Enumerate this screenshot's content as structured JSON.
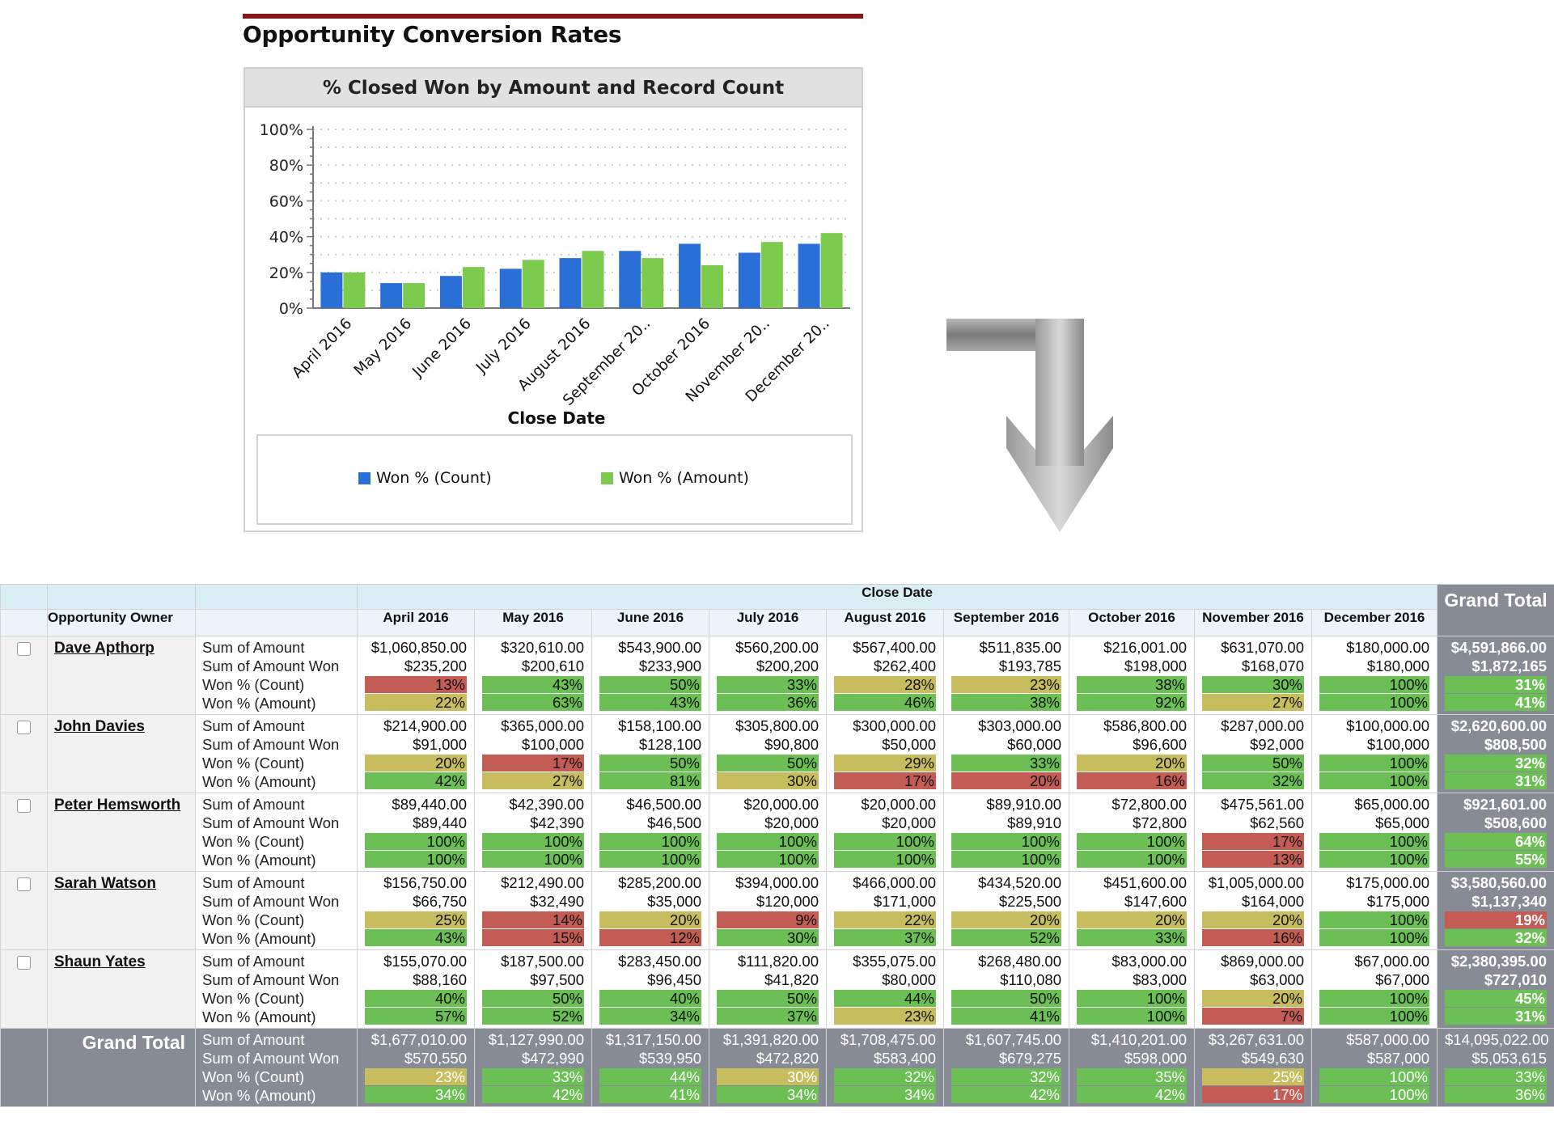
{
  "report": {
    "title": "Opportunity Conversion Rates"
  },
  "chart_data": {
    "type": "bar",
    "title": "% Closed Won by Amount and Record Count",
    "xlabel": "Close Date",
    "ylabel": "",
    "categories": [
      "April 2016",
      "May 2016",
      "June 2016",
      "July 2016",
      "August 2016",
      "September 20..",
      "October 2016",
      "November 20..",
      "December 20.."
    ],
    "series": [
      {
        "name": "Won % (Count)",
        "color": "#2a6fd6",
        "values": [
          20,
          14,
          18,
          22,
          28,
          32,
          36,
          31,
          36
        ]
      },
      {
        "name": "Won % (Amount)",
        "color": "#7ccb4f",
        "values": [
          20,
          14,
          23,
          27,
          32,
          28,
          24,
          37,
          42
        ]
      }
    ],
    "ylim": [
      0,
      100
    ],
    "yticks": [
      "0%",
      "20%",
      "40%",
      "60%",
      "80%",
      "100%"
    ],
    "grid": true,
    "legend": "bottom"
  },
  "colors": {
    "won_green": "#6cbf55",
    "mid_yellow": "#c8bd5e",
    "low_red": "#c35c55",
    "grand_total_bg": "#878b96",
    "header_blue": "#d9edf5",
    "title_rule": "#8b1414"
  },
  "table": {
    "column_group_label": "Close Date",
    "owner_header": "Opportunity Owner",
    "grand_total_label": "Grand Total",
    "months": [
      "April 2016",
      "May 2016",
      "June 2016",
      "July 2016",
      "August 2016",
      "September 2016",
      "October 2016",
      "November 2016",
      "December 2016"
    ],
    "metric_labels": [
      "Sum of Amount",
      "Sum of Amount Won",
      "Won % (Count)",
      "Won % (Amount)"
    ],
    "rows": [
      {
        "owner": "Dave Apthorp",
        "cells": [
          {
            "amount": "$1,060,850.00",
            "won": "$235,200",
            "count_pct": "13%",
            "count_color": "red",
            "amount_pct": "22%",
            "amount_color": "yellow"
          },
          {
            "amount": "$320,610.00",
            "won": "$200,610",
            "count_pct": "43%",
            "count_color": "green",
            "amount_pct": "63%",
            "amount_color": "green"
          },
          {
            "amount": "$543,900.00",
            "won": "$233,900",
            "count_pct": "50%",
            "count_color": "green",
            "amount_pct": "43%",
            "amount_color": "green"
          },
          {
            "amount": "$560,200.00",
            "won": "$200,200",
            "count_pct": "33%",
            "count_color": "green",
            "amount_pct": "36%",
            "amount_color": "green"
          },
          {
            "amount": "$567,400.00",
            "won": "$262,400",
            "count_pct": "28%",
            "count_color": "yellow",
            "amount_pct": "46%",
            "amount_color": "green"
          },
          {
            "amount": "$511,835.00",
            "won": "$193,785",
            "count_pct": "23%",
            "count_color": "yellow",
            "amount_pct": "38%",
            "amount_color": "green"
          },
          {
            "amount": "$216,001.00",
            "won": "$198,000",
            "count_pct": "38%",
            "count_color": "green",
            "amount_pct": "92%",
            "amount_color": "green"
          },
          {
            "amount": "$631,070.00",
            "won": "$168,070",
            "count_pct": "30%",
            "count_color": "green",
            "amount_pct": "27%",
            "amount_color": "yellow"
          },
          {
            "amount": "$180,000.00",
            "won": "$180,000",
            "count_pct": "100%",
            "count_color": "green",
            "amount_pct": "100%",
            "amount_color": "green"
          }
        ],
        "total": {
          "amount": "$4,591,866.00",
          "won": "$1,872,165",
          "count_pct": "31%",
          "count_color": "green",
          "amount_pct": "41%",
          "amount_color": "green"
        }
      },
      {
        "owner": "John Davies",
        "cells": [
          {
            "amount": "$214,900.00",
            "won": "$91,000",
            "count_pct": "20%",
            "count_color": "yellow",
            "amount_pct": "42%",
            "amount_color": "green"
          },
          {
            "amount": "$365,000.00",
            "won": "$100,000",
            "count_pct": "17%",
            "count_color": "red",
            "amount_pct": "27%",
            "amount_color": "yellow"
          },
          {
            "amount": "$158,100.00",
            "won": "$128,100",
            "count_pct": "50%",
            "count_color": "green",
            "amount_pct": "81%",
            "amount_color": "green"
          },
          {
            "amount": "$305,800.00",
            "won": "$90,800",
            "count_pct": "50%",
            "count_color": "green",
            "amount_pct": "30%",
            "amount_color": "yellow"
          },
          {
            "amount": "$300,000.00",
            "won": "$50,000",
            "count_pct": "29%",
            "count_color": "yellow",
            "amount_pct": "17%",
            "amount_color": "red"
          },
          {
            "amount": "$303,000.00",
            "won": "$60,000",
            "count_pct": "33%",
            "count_color": "green",
            "amount_pct": "20%",
            "amount_color": "red"
          },
          {
            "amount": "$586,800.00",
            "won": "$96,600",
            "count_pct": "20%",
            "count_color": "yellow",
            "amount_pct": "16%",
            "amount_color": "red"
          },
          {
            "amount": "$287,000.00",
            "won": "$92,000",
            "count_pct": "50%",
            "count_color": "green",
            "amount_pct": "32%",
            "amount_color": "green"
          },
          {
            "amount": "$100,000.00",
            "won": "$100,000",
            "count_pct": "100%",
            "count_color": "green",
            "amount_pct": "100%",
            "amount_color": "green"
          }
        ],
        "total": {
          "amount": "$2,620,600.00",
          "won": "$808,500",
          "count_pct": "32%",
          "count_color": "green",
          "amount_pct": "31%",
          "amount_color": "green"
        }
      },
      {
        "owner": "Peter Hemsworth",
        "cells": [
          {
            "amount": "$89,440.00",
            "won": "$89,440",
            "count_pct": "100%",
            "count_color": "green",
            "amount_pct": "100%",
            "amount_color": "green"
          },
          {
            "amount": "$42,390.00",
            "won": "$42,390",
            "count_pct": "100%",
            "count_color": "green",
            "amount_pct": "100%",
            "amount_color": "green"
          },
          {
            "amount": "$46,500.00",
            "won": "$46,500",
            "count_pct": "100%",
            "count_color": "green",
            "amount_pct": "100%",
            "amount_color": "green"
          },
          {
            "amount": "$20,000.00",
            "won": "$20,000",
            "count_pct": "100%",
            "count_color": "green",
            "amount_pct": "100%",
            "amount_color": "green"
          },
          {
            "amount": "$20,000.00",
            "won": "$20,000",
            "count_pct": "100%",
            "count_color": "green",
            "amount_pct": "100%",
            "amount_color": "green"
          },
          {
            "amount": "$89,910.00",
            "won": "$89,910",
            "count_pct": "100%",
            "count_color": "green",
            "amount_pct": "100%",
            "amount_color": "green"
          },
          {
            "amount": "$72,800.00",
            "won": "$72,800",
            "count_pct": "100%",
            "count_color": "green",
            "amount_pct": "100%",
            "amount_color": "green"
          },
          {
            "amount": "$475,561.00",
            "won": "$62,560",
            "count_pct": "17%",
            "count_color": "red",
            "amount_pct": "13%",
            "amount_color": "red"
          },
          {
            "amount": "$65,000.00",
            "won": "$65,000",
            "count_pct": "100%",
            "count_color": "green",
            "amount_pct": "100%",
            "amount_color": "green"
          }
        ],
        "total": {
          "amount": "$921,601.00",
          "won": "$508,600",
          "count_pct": "64%",
          "count_color": "green",
          "amount_pct": "55%",
          "amount_color": "green"
        }
      },
      {
        "owner": "Sarah Watson",
        "cells": [
          {
            "amount": "$156,750.00",
            "won": "$66,750",
            "count_pct": "25%",
            "count_color": "yellow",
            "amount_pct": "43%",
            "amount_color": "green"
          },
          {
            "amount": "$212,490.00",
            "won": "$32,490",
            "count_pct": "14%",
            "count_color": "red",
            "amount_pct": "15%",
            "amount_color": "red"
          },
          {
            "amount": "$285,200.00",
            "won": "$35,000",
            "count_pct": "20%",
            "count_color": "yellow",
            "amount_pct": "12%",
            "amount_color": "red"
          },
          {
            "amount": "$394,000.00",
            "won": "$120,000",
            "count_pct": "9%",
            "count_color": "red",
            "amount_pct": "30%",
            "amount_color": "green"
          },
          {
            "amount": "$466,000.00",
            "won": "$171,000",
            "count_pct": "22%",
            "count_color": "yellow",
            "amount_pct": "37%",
            "amount_color": "green"
          },
          {
            "amount": "$434,520.00",
            "won": "$225,500",
            "count_pct": "20%",
            "count_color": "yellow",
            "amount_pct": "52%",
            "amount_color": "green"
          },
          {
            "amount": "$451,600.00",
            "won": "$147,600",
            "count_pct": "20%",
            "count_color": "yellow",
            "amount_pct": "33%",
            "amount_color": "green"
          },
          {
            "amount": "$1,005,000.00",
            "won": "$164,000",
            "count_pct": "20%",
            "count_color": "yellow",
            "amount_pct": "16%",
            "amount_color": "red"
          },
          {
            "amount": "$175,000.00",
            "won": "$175,000",
            "count_pct": "100%",
            "count_color": "green",
            "amount_pct": "100%",
            "amount_color": "green"
          }
        ],
        "total": {
          "amount": "$3,580,560.00",
          "won": "$1,137,340",
          "count_pct": "19%",
          "count_color": "red",
          "amount_pct": "32%",
          "amount_color": "green"
        }
      },
      {
        "owner": "Shaun Yates",
        "cells": [
          {
            "amount": "$155,070.00",
            "won": "$88,160",
            "count_pct": "40%",
            "count_color": "green",
            "amount_pct": "57%",
            "amount_color": "green"
          },
          {
            "amount": "$187,500.00",
            "won": "$97,500",
            "count_pct": "50%",
            "count_color": "green",
            "amount_pct": "52%",
            "amount_color": "green"
          },
          {
            "amount": "$283,450.00",
            "won": "$96,450",
            "count_pct": "40%",
            "count_color": "green",
            "amount_pct": "34%",
            "amount_color": "green"
          },
          {
            "amount": "$111,820.00",
            "won": "$41,820",
            "count_pct": "50%",
            "count_color": "green",
            "amount_pct": "37%",
            "amount_color": "green"
          },
          {
            "amount": "$355,075.00",
            "won": "$80,000",
            "count_pct": "44%",
            "count_color": "green",
            "amount_pct": "23%",
            "amount_color": "yellow"
          },
          {
            "amount": "$268,480.00",
            "won": "$110,080",
            "count_pct": "50%",
            "count_color": "green",
            "amount_pct": "41%",
            "amount_color": "green"
          },
          {
            "amount": "$83,000.00",
            "won": "$83,000",
            "count_pct": "100%",
            "count_color": "green",
            "amount_pct": "100%",
            "amount_color": "green"
          },
          {
            "amount": "$869,000.00",
            "won": "$63,000",
            "count_pct": "20%",
            "count_color": "yellow",
            "amount_pct": "7%",
            "amount_color": "red"
          },
          {
            "amount": "$67,000.00",
            "won": "$67,000",
            "count_pct": "100%",
            "count_color": "green",
            "amount_pct": "100%",
            "amount_color": "green"
          }
        ],
        "total": {
          "amount": "$2,380,395.00",
          "won": "$727,010",
          "count_pct": "45%",
          "count_color": "green",
          "amount_pct": "31%",
          "amount_color": "green"
        }
      }
    ],
    "grand_total_row": {
      "label": "Grand Total",
      "cells": [
        {
          "amount": "$1,677,010.00",
          "won": "$570,550",
          "count_pct": "23%",
          "count_color": "yellow",
          "amount_pct": "34%",
          "amount_color": "green"
        },
        {
          "amount": "$1,127,990.00",
          "won": "$472,990",
          "count_pct": "33%",
          "count_color": "green",
          "amount_pct": "42%",
          "amount_color": "green"
        },
        {
          "amount": "$1,317,150.00",
          "won": "$539,950",
          "count_pct": "44%",
          "count_color": "green",
          "amount_pct": "41%",
          "amount_color": "green"
        },
        {
          "amount": "$1,391,820.00",
          "won": "$472,820",
          "count_pct": "30%",
          "count_color": "yellow",
          "amount_pct": "34%",
          "amount_color": "green"
        },
        {
          "amount": "$1,708,475.00",
          "won": "$583,400",
          "count_pct": "32%",
          "count_color": "green",
          "amount_pct": "34%",
          "amount_color": "green"
        },
        {
          "amount": "$1,607,745.00",
          "won": "$679,275",
          "count_pct": "32%",
          "count_color": "green",
          "amount_pct": "42%",
          "amount_color": "green"
        },
        {
          "amount": "$1,410,201.00",
          "won": "$598,000",
          "count_pct": "35%",
          "count_color": "green",
          "amount_pct": "42%",
          "amount_color": "green"
        },
        {
          "amount": "$3,267,631.00",
          "won": "$549,630",
          "count_pct": "25%",
          "count_color": "yellow",
          "amount_pct": "17%",
          "amount_color": "red"
        },
        {
          "amount": "$587,000.00",
          "won": "$587,000",
          "count_pct": "100%",
          "count_color": "green",
          "amount_pct": "100%",
          "amount_color": "green"
        }
      ],
      "total": {
        "amount": "$14,095,022.00",
        "won": "$5,053,615",
        "count_pct": "33%",
        "count_color": "green",
        "amount_pct": "36%",
        "amount_color": "green"
      }
    }
  }
}
